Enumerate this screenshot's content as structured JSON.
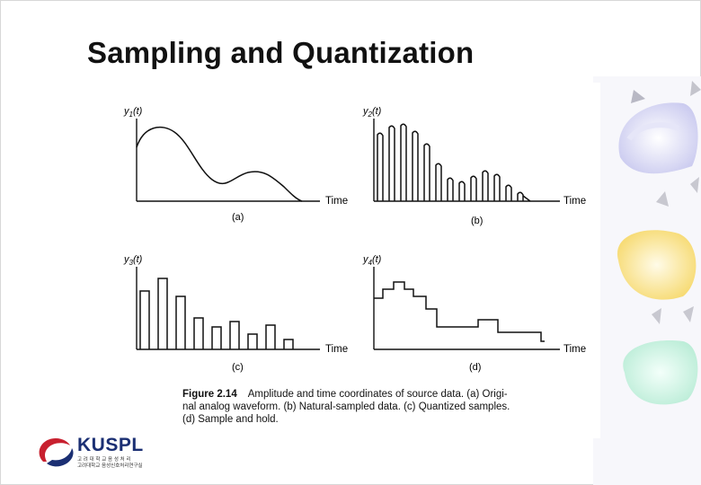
{
  "slide": {
    "title": "Sampling and Quantization"
  },
  "figure": {
    "panels": [
      {
        "ylabel_main": "y",
        "ylabel_sub": "1",
        "ylabel_arg": "(t)",
        "xlabel": "Time",
        "tag": "(a)",
        "kind": "original"
      },
      {
        "ylabel_main": "y",
        "ylabel_sub": "2",
        "ylabel_arg": "(t)",
        "xlabel": "Time",
        "tag": "(b)",
        "kind": "natural-sampled"
      },
      {
        "ylabel_main": "y",
        "ylabel_sub": "3",
        "ylabel_arg": "(t)",
        "xlabel": "Time",
        "tag": "(c)",
        "kind": "quantized"
      },
      {
        "ylabel_main": "y",
        "ylabel_sub": "4",
        "ylabel_arg": "(t)",
        "xlabel": "Time",
        "tag": "(d)",
        "kind": "sample-and-hold"
      }
    ],
    "caption": {
      "number": "Figure 2.14",
      "line1": "Amplitude and time coordinates of source data. (a) Origi-",
      "line2": "nal analog waveform. (b) Natural-sampled data. (c) Quantized samples.",
      "line3": "(d) Sample and hold."
    }
  },
  "logo": {
    "name": "KUSPL",
    "subline1": "고 려 대 학 교 음 성 처 리",
    "subline2": "고려대학교 음성신호처리연구실"
  },
  "colors": {
    "title": "#111111",
    "logo_blue": "#1b2f73",
    "logo_red": "#c8202f"
  }
}
